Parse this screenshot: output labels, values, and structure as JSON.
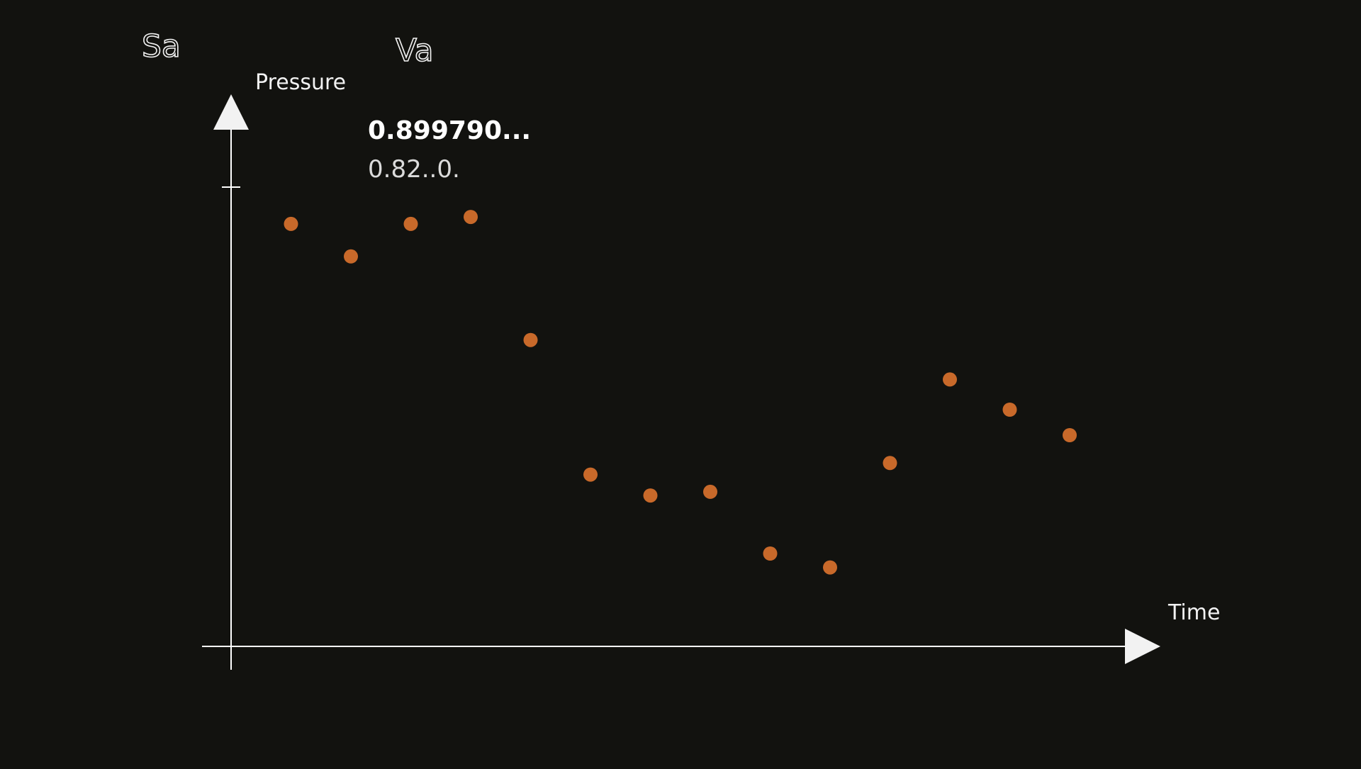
{
  "header": {
    "label_left": "Sa",
    "label_mid": "Va"
  },
  "readout": {
    "line1": "0.899790...",
    "line2": "0.82..0."
  },
  "colors": {
    "background": "#12120f",
    "axis": "#ffffff",
    "point": "#c8692a"
  },
  "chart_data": {
    "type": "scatter",
    "xlabel": "Time",
    "ylabel": "Pressure",
    "x": [
      1,
      2,
      3,
      4,
      5,
      6,
      7,
      8,
      9,
      10,
      11,
      12,
      13,
      14
    ],
    "y": [
      0.91,
      0.84,
      0.91,
      0.925,
      0.66,
      0.37,
      0.325,
      0.333,
      0.2,
      0.17,
      0.395,
      0.575,
      0.51,
      0.455
    ],
    "xlim": [
      0,
      15.5
    ],
    "ylim": [
      0,
      1
    ],
    "grid": false,
    "legend": "none"
  }
}
